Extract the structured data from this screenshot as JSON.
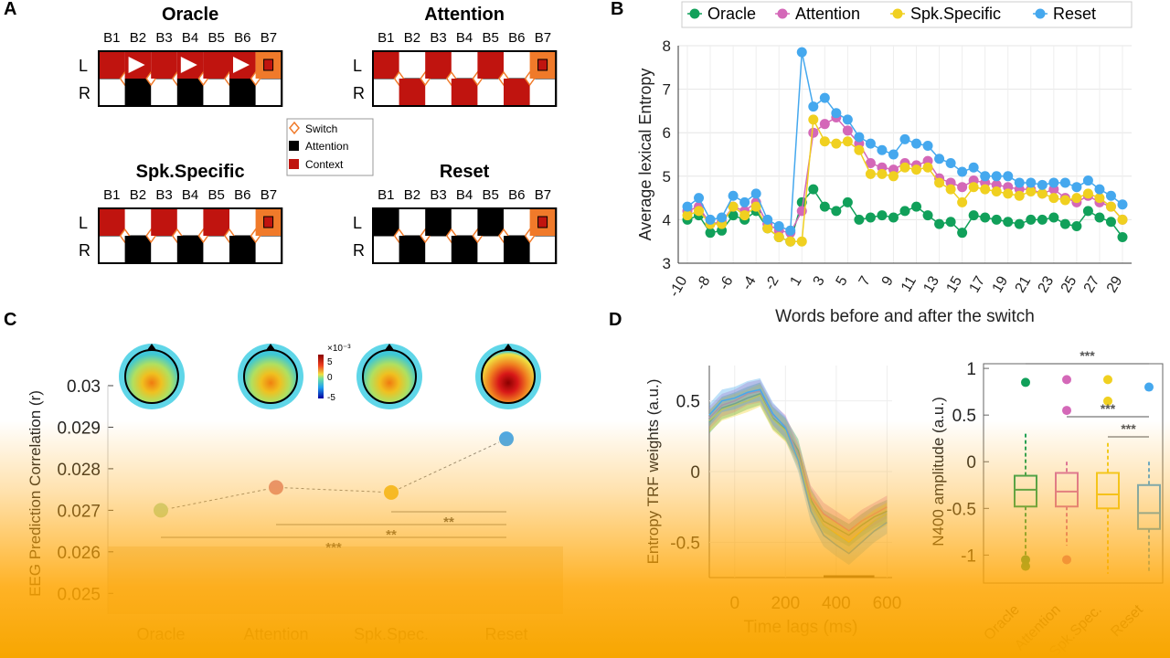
{
  "panel_labels": {
    "a": "A",
    "b": "B",
    "c": "C",
    "d": "D"
  },
  "panel_a": {
    "row_labels": [
      "L",
      "R"
    ],
    "block_labels": [
      "B1",
      "B2",
      "B3",
      "B4",
      "B5",
      "B6",
      "B7"
    ],
    "conditions": [
      {
        "name": "Oracle"
      },
      {
        "name": "Attention"
      },
      {
        "name": "Spk.Specific"
      },
      {
        "name": "Reset"
      }
    ],
    "legend": {
      "switch": "Switch",
      "attention": "Attention",
      "context": "Context"
    },
    "colors": {
      "context": "#c0140f",
      "attention": "#000000",
      "switch": "#f07a2a",
      "last_block": "#f07a2a"
    }
  },
  "chart_data": [
    {
      "id": "B",
      "type": "line",
      "title": "",
      "xlabel": "Words before and after the switch",
      "ylabel": "Average lexical Entropy",
      "ylim": [
        3,
        8
      ],
      "yticks": [
        3,
        4,
        5,
        6,
        7,
        8
      ],
      "x": [
        -10,
        -9,
        -8,
        -7,
        -6,
        -5,
        -4,
        -3,
        -2,
        -1,
        1,
        2,
        3,
        4,
        5,
        6,
        7,
        8,
        9,
        10,
        11,
        12,
        13,
        14,
        15,
        16,
        17,
        18,
        19,
        20,
        21,
        22,
        23,
        24,
        25,
        26,
        27,
        28,
        29
      ],
      "xtick_labels": [
        "-10",
        "-8",
        "-6",
        "-4",
        "-2",
        "1",
        "3",
        "5",
        "7",
        "9",
        "11",
        "13",
        "15",
        "17",
        "19",
        "21",
        "23",
        "25",
        "27",
        "29"
      ],
      "legend_position": "top",
      "series": [
        {
          "name": "Oracle",
          "color": "#11a05a",
          "values": [
            4.0,
            4.1,
            3.7,
            3.75,
            4.1,
            4.0,
            4.2,
            3.8,
            3.6,
            3.5,
            4.4,
            4.7,
            4.3,
            4.2,
            4.4,
            4.0,
            4.05,
            4.1,
            4.05,
            4.2,
            4.3,
            4.1,
            3.9,
            3.95,
            3.7,
            4.1,
            4.05,
            4.0,
            3.95,
            3.9,
            4.0,
            4.0,
            4.05,
            3.9,
            3.85,
            4.2,
            4.05,
            3.95,
            3.6
          ]
        },
        {
          "name": "Attention",
          "color": "#d468b8",
          "values": [
            4.2,
            4.3,
            3.9,
            3.95,
            4.3,
            4.2,
            4.4,
            3.9,
            3.75,
            3.7,
            4.2,
            6.0,
            6.2,
            6.35,
            6.05,
            5.75,
            5.3,
            5.2,
            5.15,
            5.3,
            5.25,
            5.35,
            4.95,
            4.85,
            4.75,
            4.9,
            4.85,
            4.8,
            4.75,
            4.7,
            4.7,
            4.6,
            4.7,
            4.5,
            4.4,
            4.55,
            4.4,
            4.3,
            4.0
          ]
        },
        {
          "name": "Spk.Specific",
          "color": "#f0d020",
          "values": [
            4.1,
            4.2,
            3.9,
            3.9,
            4.3,
            4.1,
            4.3,
            3.8,
            3.6,
            3.5,
            3.5,
            6.3,
            5.8,
            5.75,
            5.8,
            5.6,
            5.05,
            5.05,
            5.0,
            5.2,
            5.15,
            5.2,
            4.85,
            4.7,
            4.4,
            4.75,
            4.7,
            4.65,
            4.6,
            4.55,
            4.65,
            4.6,
            4.5,
            4.45,
            4.5,
            4.6,
            4.5,
            4.3,
            4.0
          ]
        },
        {
          "name": "Reset",
          "color": "#45a8ee",
          "values": [
            4.3,
            4.5,
            4.0,
            4.05,
            4.55,
            4.4,
            4.6,
            4.0,
            3.85,
            3.75,
            7.85,
            6.6,
            6.8,
            6.45,
            6.3,
            5.9,
            5.75,
            5.6,
            5.5,
            5.85,
            5.75,
            5.7,
            5.4,
            5.3,
            5.1,
            5.2,
            5.0,
            5.0,
            5.0,
            4.85,
            4.85,
            4.8,
            4.85,
            4.85,
            4.75,
            4.9,
            4.7,
            4.55,
            4.35
          ]
        }
      ]
    },
    {
      "id": "C",
      "type": "scatter",
      "title": "",
      "xlabel": "",
      "ylabel": "EEG Prediction Correlation (r)",
      "ylim": [
        0.0245,
        0.03
      ],
      "yticks": [
        0.025,
        0.026,
        0.027,
        0.028,
        0.029,
        0.03
      ],
      "ytick_labels": [
        "0.025",
        "0.026",
        "0.027",
        "0.028",
        "0.029",
        "0.03"
      ],
      "categories": [
        "Oracle",
        "Attention",
        "Spk.Spec.",
        "Reset"
      ],
      "values": [
        0.027,
        0.02755,
        0.02743,
        0.02872
      ],
      "colors": [
        "#b9dfa5",
        "#e08a8a",
        "#f2c230",
        "#45a8ee"
      ],
      "significance": [
        {
          "from": "Spk.Spec.",
          "to": "Reset",
          "label": "**"
        },
        {
          "from": "Attention",
          "to": "Reset",
          "label": "**"
        },
        {
          "from": "Oracle",
          "to": "Reset",
          "label": "***"
        }
      ],
      "colorbar": {
        "exponent": "×10⁻³",
        "ticks": [
          "5",
          "0",
          "-5"
        ]
      }
    },
    {
      "id": "D-left",
      "type": "area",
      "title": "",
      "xlabel": "Time lags (ms)",
      "ylabel": "Entropy TRF weights (a.u.)",
      "xlim": [
        -100,
        620
      ],
      "xticks": [
        0,
        200,
        400,
        600
      ],
      "ylim": [
        -0.75,
        0.75
      ],
      "yticks": [
        -0.5,
        0,
        0.5
      ],
      "x": [
        -100,
        -50,
        0,
        50,
        100,
        150,
        200,
        250,
        300,
        350,
        400,
        450,
        500,
        550,
        600
      ],
      "series": [
        {
          "name": "Oracle",
          "color": "#11a05a",
          "values": [
            0.35,
            0.45,
            0.48,
            0.52,
            0.55,
            0.38,
            0.3,
            0.15,
            -0.2,
            -0.35,
            -0.4,
            -0.45,
            -0.38,
            -0.32,
            -0.28
          ]
        },
        {
          "name": "Attention",
          "color": "#d468b8",
          "values": [
            0.38,
            0.47,
            0.5,
            0.55,
            0.57,
            0.4,
            0.32,
            0.12,
            -0.18,
            -0.3,
            -0.36,
            -0.42,
            -0.35,
            -0.3,
            -0.25
          ]
        },
        {
          "name": "Spk.Specific",
          "color": "#f0d020",
          "values": [
            0.36,
            0.44,
            0.47,
            0.5,
            0.54,
            0.37,
            0.29,
            0.1,
            -0.22,
            -0.38,
            -0.44,
            -0.5,
            -0.42,
            -0.35,
            -0.3
          ]
        },
        {
          "name": "Reset",
          "color": "#45a8ee",
          "values": [
            0.4,
            0.5,
            0.52,
            0.56,
            0.58,
            0.41,
            0.31,
            0.08,
            -0.28,
            -0.45,
            -0.52,
            -0.58,
            -0.5,
            -0.42,
            -0.36
          ]
        }
      ]
    },
    {
      "id": "D-right",
      "type": "box",
      "title": "",
      "xlabel": "",
      "ylabel": "N400 amplitude (a.u.)",
      "ylim": [
        -1.3,
        1.05
      ],
      "yticks": [
        -1,
        -0.5,
        0,
        0.5,
        1
      ],
      "ytick_labels": [
        "-1",
        "-0.5",
        "0",
        "0.5",
        "1"
      ],
      "categories": [
        "Oracle",
        "Attention",
        "Spk.Spec.",
        "Reset"
      ],
      "colors": [
        "#11a05a",
        "#d468b8",
        "#f0d020",
        "#45a8ee"
      ],
      "boxes": [
        {
          "min": -1.0,
          "q1": -0.48,
          "median": -0.3,
          "q3": -0.15,
          "max": 0.3,
          "outliers": [
            0.85,
            -1.05,
            -1.12
          ]
        },
        {
          "min": -0.9,
          "q1": -0.48,
          "median": -0.32,
          "q3": -0.12,
          "max": 0.0,
          "outliers": [
            0.88,
            0.55,
            -1.05
          ]
        },
        {
          "min": -1.2,
          "q1": -0.5,
          "median": -0.35,
          "q3": -0.12,
          "max": 0.2,
          "outliers": [
            0.88,
            0.65
          ]
        },
        {
          "min": -1.2,
          "q1": -0.72,
          "median": -0.55,
          "q3": -0.25,
          "max": 0.0,
          "outliers": [
            0.8
          ]
        }
      ],
      "significance": [
        "***",
        "***",
        "***"
      ]
    }
  ]
}
